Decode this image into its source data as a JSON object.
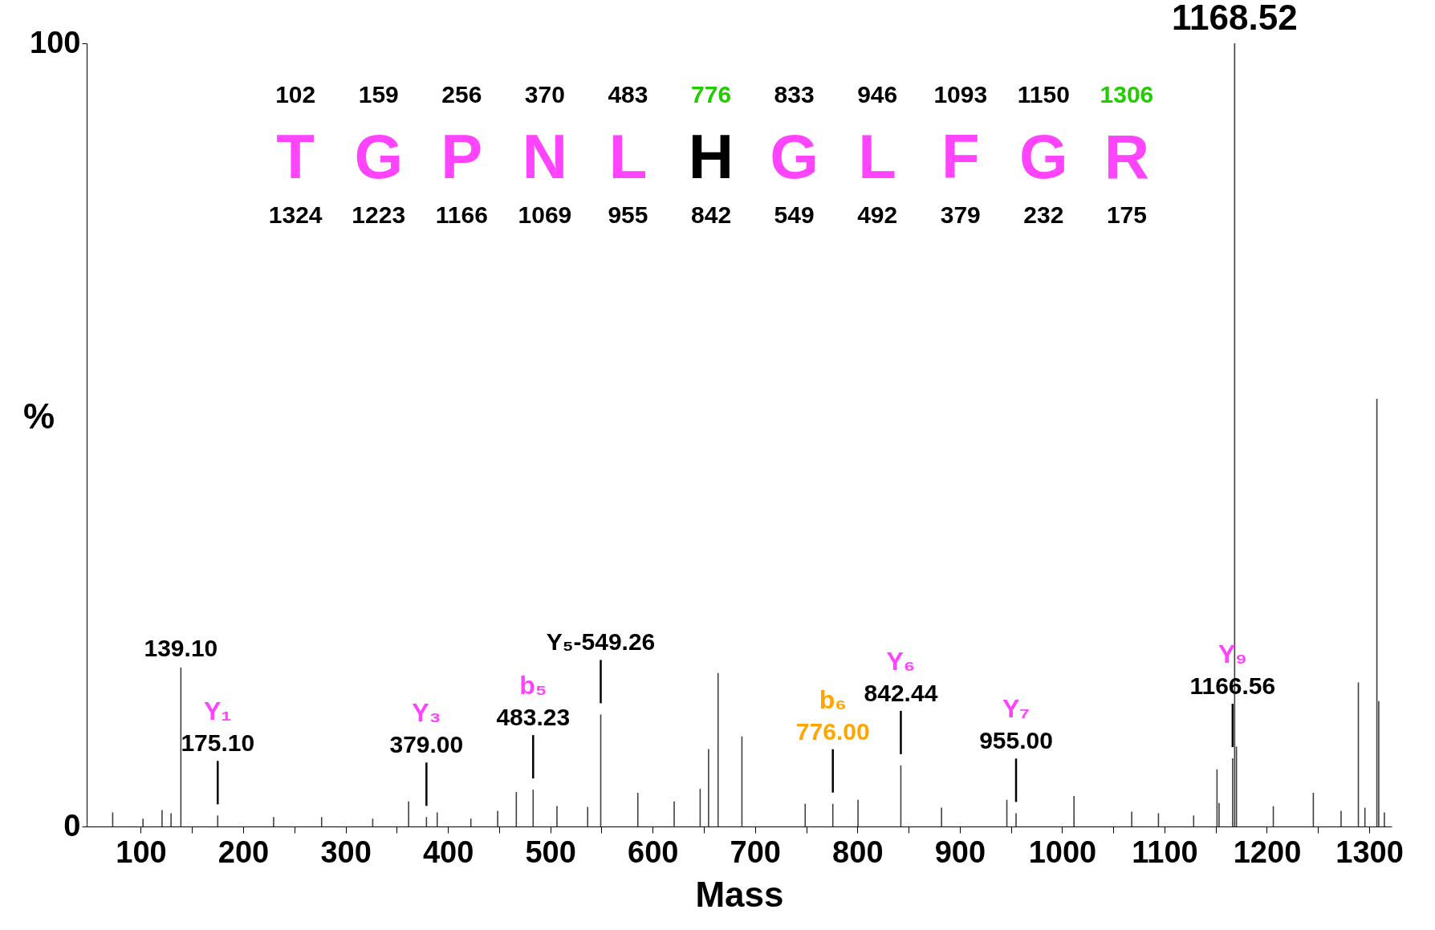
{
  "chart_data": {
    "type": "bar",
    "xlabel": "Mass",
    "ylabel": "%",
    "x": [
      72.5,
      102.1,
      120.7,
      129.5,
      139.1,
      175.1,
      229.7,
      276.6,
      326.5,
      361.6,
      379,
      389.5,
      422.4,
      448.6,
      466.8,
      483.23,
      506.5,
      536.5,
      549.26,
      585.5,
      621,
      646.4,
      654.6,
      663.9,
      687.2,
      749,
      776,
      800.6,
      842.44,
      882.2,
      946,
      955,
      1011.6,
      1068,
      1094.1,
      1128.5,
      1151.3,
      1153.3,
      1166.56,
      1168.52,
      1170.3,
      1206.3,
      1245.4,
      1272.5,
      1289.4,
      1295.8,
      1307.5,
      1309.3,
      1314.8
    ],
    "series": [
      {
        "color": "#404040",
        "values": [
          1.8,
          1.0,
          2.1,
          1.7,
          20.3,
          1.4,
          1.2,
          1.2,
          1.0,
          3.2,
          1.2,
          1.8,
          1.0,
          2.0,
          4.4,
          4.7,
          2.6,
          2.5,
          14.3,
          4.3,
          3.2,
          4.8,
          9.9,
          19.6,
          11.5,
          2.9,
          2.9,
          3.4,
          7.8,
          2.4,
          3.4,
          1.7,
          3.9,
          1.9,
          1.7,
          1.4,
          7.3,
          3.0,
          8.7,
          100,
          10.2,
          2.6,
          4.3,
          2.0,
          18.4,
          2.4,
          54.6,
          16.0,
          1.8
        ]
      }
    ],
    "xlim": [
      51,
      1318
    ],
    "xticks": [
      100,
      {
        "value": 150,
        "label": null
      },
      200,
      {
        "value": 250,
        "label": null
      },
      300,
      {
        "value": 350,
        "label": null
      },
      400,
      {
        "value": 450,
        "label": null
      },
      500,
      {
        "value": 550,
        "label": null
      },
      600,
      {
        "value": 650,
        "label": null
      },
      700,
      {
        "value": 750,
        "label": null
      },
      800,
      {
        "value": 850,
        "label": null
      },
      900,
      {
        "value": 950,
        "label": null
      },
      1000,
      {
        "value": 1050,
        "label": null
      },
      1100,
      {
        "value": 1150,
        "label": null
      },
      1200,
      {
        "value": 1250,
        "label": null
      },
      1300
    ],
    "ylim": [
      0,
      100
    ],
    "yticks": [
      0,
      100
    ],
    "annotations": [
      {
        "text": "1168.52",
        "x": 1168.52,
        "y": 100
      },
      {
        "text": "139.10",
        "x": 139.1,
        "y": 20.3
      },
      "Y₁",
      {
        "text": "175.10",
        "x": 175.1,
        "y": 1.4
      },
      "Y₃",
      {
        "text": "379.00",
        "x": 379,
        "y": 1.2
      },
      "b₅",
      {
        "text": "483.23",
        "x": 483.23,
        "y": 4.7
      },
      {
        "text": "Y₅-549.26",
        "x": 549.26,
        "y": 14.3
      },
      "b₆",
      {
        "text": "776.00",
        "x": 776,
        "y": 2.9
      },
      "Y₆",
      {
        "text": "842.44",
        "x": 842.44,
        "y": 7.8
      },
      "Y₇",
      {
        "text": "955.00",
        "x": 955,
        "y": 1.7
      },
      "Y₉",
      {
        "text": "1166.56",
        "x": 1166.56,
        "y": 8.7
      },
      "102",
      "159",
      "256",
      "370",
      "483",
      "776",
      "833",
      "946",
      "1093",
      "1150",
      "1306",
      "T",
      "G",
      "P",
      "N",
      "L",
      "H",
      "G",
      "L",
      "F",
      "G",
      "R",
      "1324",
      "1223",
      "1166",
      "1069",
      "955",
      "842",
      "549",
      "492",
      "379",
      "232",
      "175"
    ]
  }
}
